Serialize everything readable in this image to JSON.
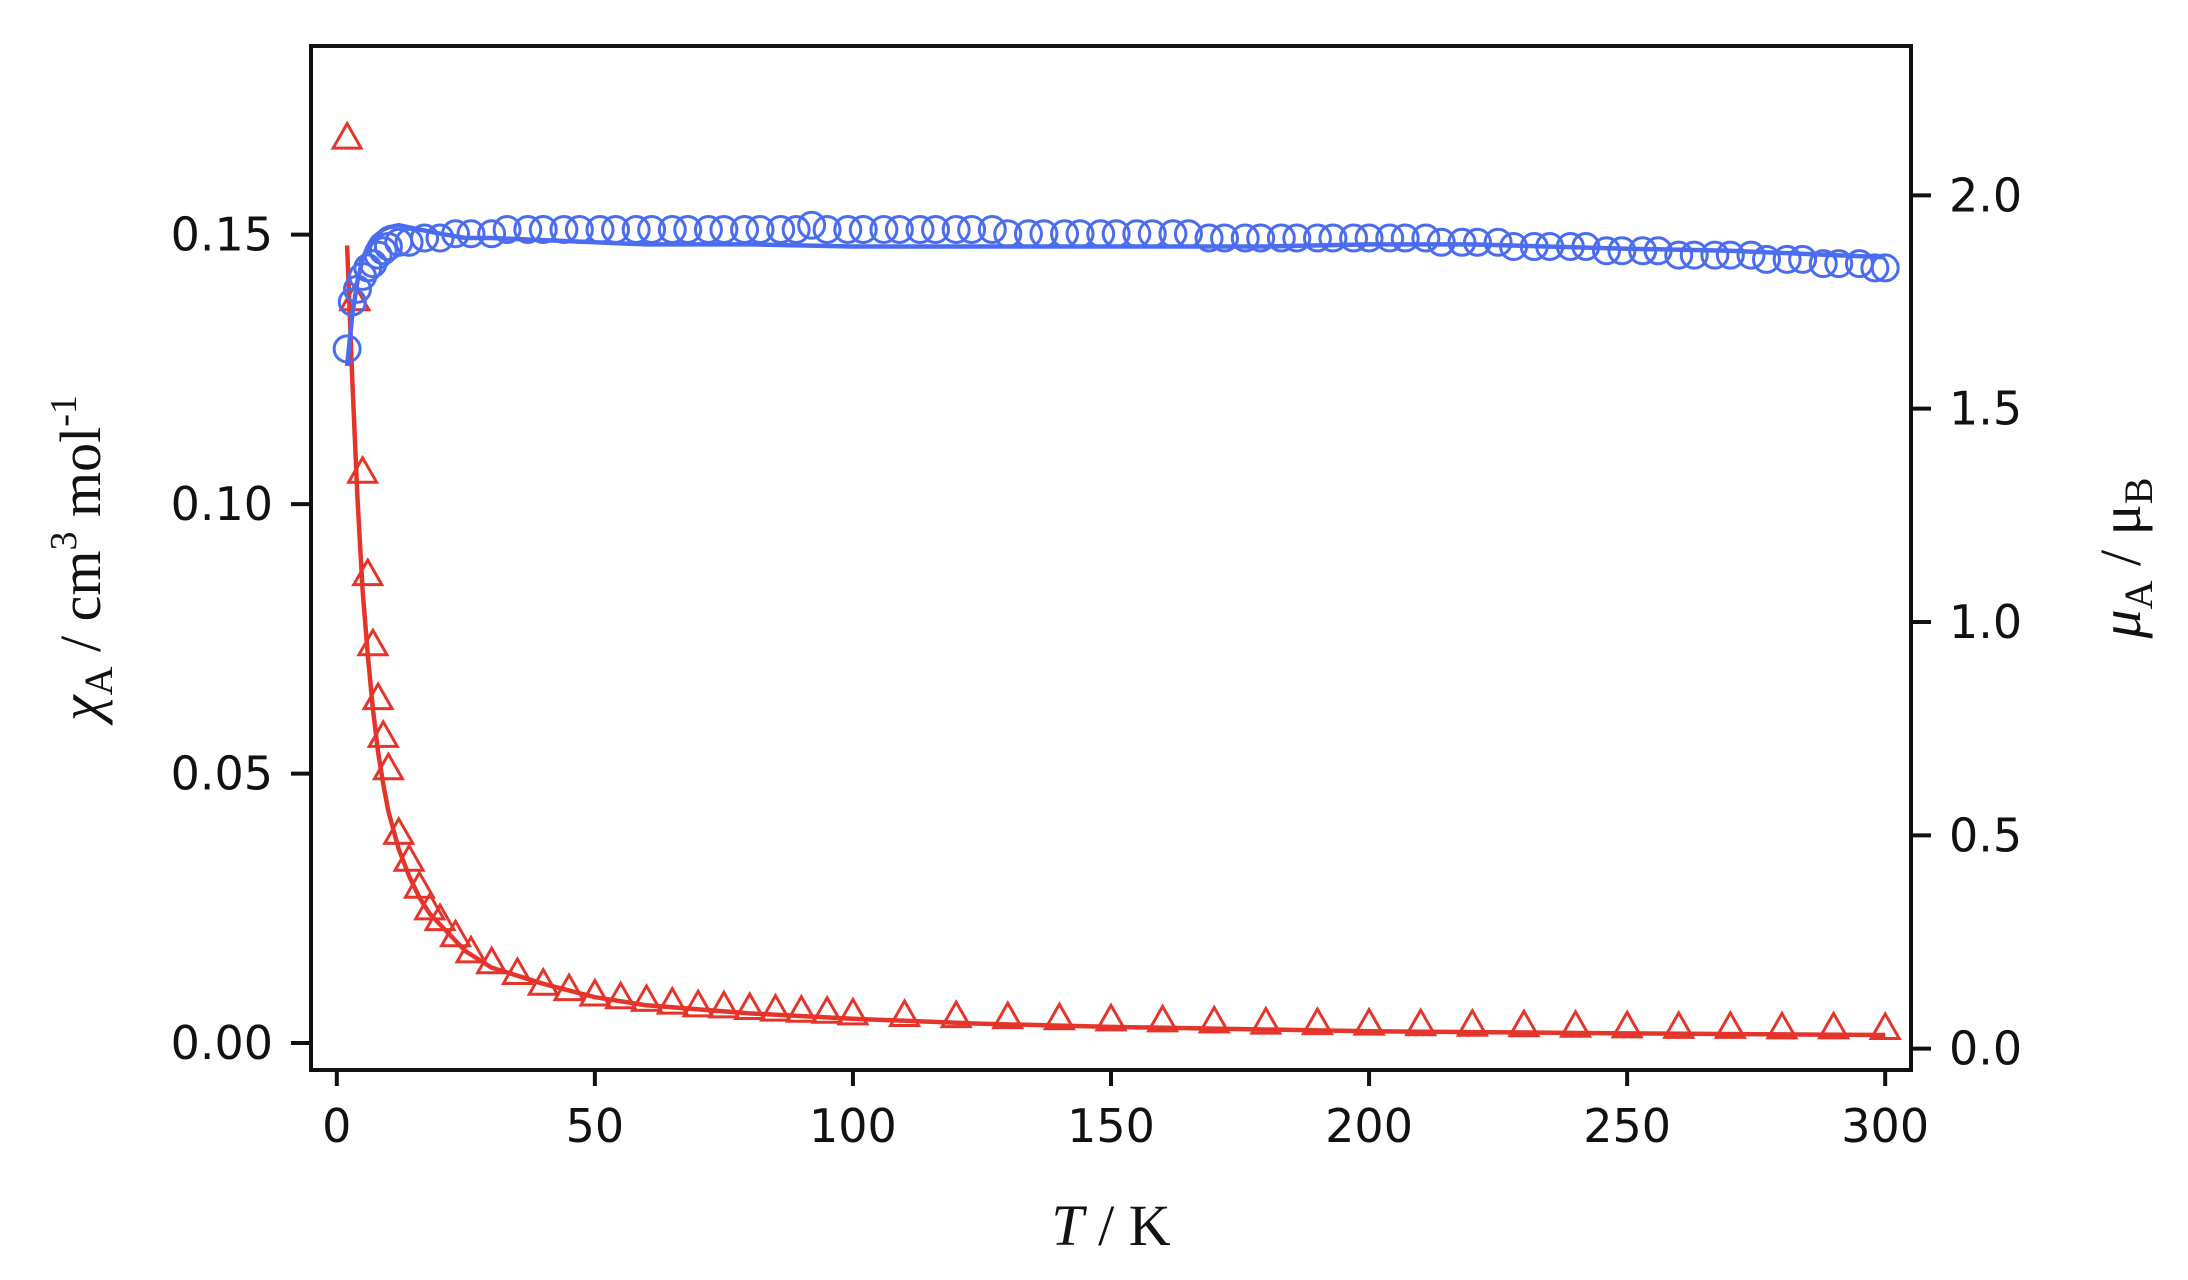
{
  "chart_data": {
    "type": "scatter",
    "title": "",
    "xlabel": {
      "italic": "T",
      "rest": " / K"
    },
    "ylabel_left": {
      "symbol": "χ",
      "sub": "A",
      "mid": " / cm",
      "sup": "3",
      "end": " mol",
      "sup2": "-1"
    },
    "ylabel_right": {
      "symbol": "μ",
      "sub": "A",
      "mid": " / μ",
      "sub2": "B"
    },
    "xlim": [
      -5,
      305
    ],
    "ylim_left": [
      -0.005,
      0.185
    ],
    "ylim_right": [
      -0.05,
      2.35
    ],
    "x_ticks": [
      "0",
      "50",
      "100",
      "150",
      "200",
      "250",
      "300"
    ],
    "x_tick_values": [
      0,
      50,
      100,
      150,
      200,
      250,
      300
    ],
    "y_left_ticks": [
      "0.00",
      "0.05",
      "0.10",
      "0.15"
    ],
    "y_left_tick_values": [
      0.0,
      0.05,
      0.1,
      0.15
    ],
    "y_right_ticks": [
      "0.0",
      "0.5",
      "1.0",
      "1.5",
      "2.0"
    ],
    "y_right_tick_values": [
      0.0,
      0.5,
      1.0,
      1.5,
      2.0
    ],
    "grid": false,
    "colors": {
      "chi": "#e5352b",
      "mu": "#4a6cf0",
      "axis": "#111111"
    },
    "series": [
      {
        "marker": "triangle",
        "axis": "left",
        "color": "#e5352b",
        "x": [
          2,
          3.5,
          5,
          6,
          7,
          8,
          9,
          10,
          12,
          14,
          16,
          18,
          20,
          23,
          26,
          30,
          35,
          40,
          45,
          50,
          55,
          60,
          65,
          70,
          75,
          80,
          85,
          90,
          95,
          100,
          110,
          120,
          130,
          140,
          150,
          160,
          170,
          180,
          190,
          200,
          210,
          220,
          230,
          240,
          250,
          260,
          270,
          280,
          290,
          300
        ],
        "y": [
          0.168,
          0.138,
          0.106,
          0.087,
          0.074,
          0.064,
          0.057,
          0.051,
          0.039,
          0.034,
          0.029,
          0.025,
          0.023,
          0.02,
          0.017,
          0.015,
          0.013,
          0.011,
          0.01,
          0.009,
          0.0085,
          0.008,
          0.0075,
          0.007,
          0.0068,
          0.0065,
          0.0062,
          0.006,
          0.0058,
          0.0055,
          0.0052,
          0.005,
          0.0048,
          0.0046,
          0.0044,
          0.0042,
          0.004,
          0.0038,
          0.0037,
          0.0036,
          0.0035,
          0.0034,
          0.0033,
          0.0032,
          0.0031,
          0.003,
          0.003,
          0.0029,
          0.0029,
          0.0028
        ]
      },
      {
        "marker": "line",
        "axis": "left",
        "color": "#e5352b",
        "x": [
          2,
          3,
          4,
          5,
          6,
          7,
          8,
          9,
          10,
          12,
          14,
          16,
          18,
          20,
          25,
          30,
          40,
          50,
          60,
          80,
          100,
          125,
          150,
          200,
          250,
          300
        ],
        "y": [
          0.148,
          0.123,
          0.101,
          0.084,
          0.072,
          0.062,
          0.054,
          0.048,
          0.043,
          0.036,
          0.031,
          0.027,
          0.024,
          0.022,
          0.017,
          0.014,
          0.011,
          0.0085,
          0.007,
          0.0055,
          0.0045,
          0.0036,
          0.003,
          0.0022,
          0.0018,
          0.0015
        ]
      },
      {
        "marker": "circle",
        "axis": "right",
        "color": "#4a6cf0",
        "x": [
          2,
          3,
          4,
          5,
          6,
          7,
          8,
          9,
          10,
          12,
          14,
          17,
          20,
          23,
          26,
          30,
          33,
          37,
          40,
          44,
          47,
          51,
          54,
          58,
          61,
          65,
          68,
          72,
          75,
          79,
          82,
          86,
          89,
          92,
          95,
          99,
          102,
          106,
          109,
          113,
          116,
          120,
          123,
          127,
          130,
          134,
          137,
          141,
          144,
          148,
          151,
          155,
          158,
          162,
          165,
          169,
          172,
          176,
          179,
          183,
          186,
          190,
          193,
          197,
          200,
          204,
          207,
          211,
          214,
          218,
          221,
          225,
          228,
          232,
          235,
          239,
          242,
          246,
          249,
          253,
          256,
          260,
          263,
          267,
          270,
          274,
          277,
          281,
          284,
          288,
          291,
          295,
          298,
          300
        ],
        "y": [
          1.64,
          1.75,
          1.78,
          1.81,
          1.83,
          1.84,
          1.86,
          1.87,
          1.88,
          1.89,
          1.89,
          1.9,
          1.9,
          1.91,
          1.91,
          1.91,
          1.92,
          1.92,
          1.92,
          1.92,
          1.92,
          1.92,
          1.92,
          1.92,
          1.92,
          1.92,
          1.92,
          1.92,
          1.92,
          1.92,
          1.92,
          1.92,
          1.92,
          1.93,
          1.92,
          1.92,
          1.92,
          1.92,
          1.92,
          1.92,
          1.92,
          1.92,
          1.92,
          1.92,
          1.91,
          1.91,
          1.91,
          1.91,
          1.91,
          1.91,
          1.91,
          1.91,
          1.91,
          1.91,
          1.91,
          1.9,
          1.9,
          1.9,
          1.9,
          1.9,
          1.9,
          1.9,
          1.9,
          1.9,
          1.9,
          1.9,
          1.9,
          1.9,
          1.89,
          1.89,
          1.89,
          1.89,
          1.88,
          1.88,
          1.88,
          1.88,
          1.88,
          1.87,
          1.87,
          1.87,
          1.87,
          1.86,
          1.86,
          1.86,
          1.86,
          1.86,
          1.85,
          1.85,
          1.85,
          1.84,
          1.84,
          1.84,
          1.83,
          1.83
        ]
      },
      {
        "marker": "line",
        "axis": "right",
        "color": "#4a6cf0",
        "x": [
          2,
          3,
          4,
          5,
          6,
          7,
          8,
          9,
          10,
          12,
          14,
          16,
          20,
          25,
          30,
          40,
          50,
          60,
          80,
          100,
          120,
          150,
          180,
          200,
          220,
          250,
          270,
          290,
          300
        ],
        "y": [
          1.6,
          1.72,
          1.8,
          1.85,
          1.88,
          1.9,
          1.91,
          1.92,
          1.925,
          1.93,
          1.925,
          1.92,
          1.91,
          1.9,
          1.9,
          1.895,
          1.89,
          1.885,
          1.885,
          1.88,
          1.88,
          1.88,
          1.88,
          1.885,
          1.885,
          1.875,
          1.87,
          1.86,
          1.855
        ]
      }
    ]
  }
}
